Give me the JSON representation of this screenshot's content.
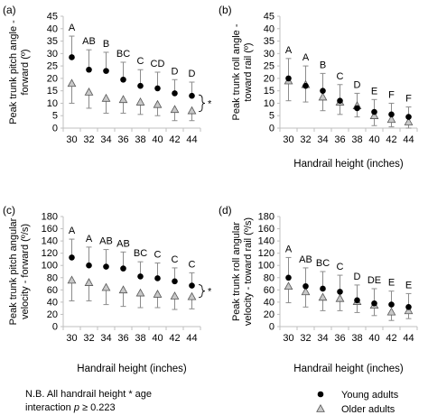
{
  "chart_data": [
    {
      "type": "scatter",
      "panel_label": "(a)",
      "ylabel_lines": [
        "Peak trunk pitch angle -",
        "forward (º)"
      ],
      "xlabel": "",
      "ylim": [
        0,
        45
      ],
      "yticks": [
        0,
        5,
        10,
        15,
        20,
        25,
        30,
        35,
        40,
        45
      ],
      "x": [
        30,
        32,
        34,
        36,
        38,
        40,
        42,
        44
      ],
      "series": [
        {
          "name": "Young adults",
          "marker": "circle",
          "values": [
            28.5,
            23.5,
            23.0,
            19.5,
            17.0,
            16.0,
            14.0,
            13.0
          ],
          "err_up": [
            8.5,
            8.0,
            7.5,
            7.0,
            6.5,
            6.5,
            5.5,
            5.5
          ]
        },
        {
          "name": "Older adults",
          "marker": "triangle",
          "values": [
            18.0,
            14.5,
            12.0,
            11.5,
            10.5,
            9.5,
            7.5,
            7.0
          ],
          "err_down": [
            8.0,
            6.5,
            6.0,
            5.5,
            5.0,
            4.5,
            4.5,
            4.0
          ]
        }
      ],
      "letters": [
        "A",
        "AB",
        "B",
        "BC",
        "C",
        "CD",
        "D",
        "D"
      ],
      "sig_mark": "*"
    },
    {
      "type": "scatter",
      "panel_label": "(b)",
      "ylabel_lines": [
        "Peak trunk roll angle -",
        "toward rail (º)"
      ],
      "xlabel": "Handrail height (inches)",
      "ylim": [
        0,
        45
      ],
      "yticks": [
        0,
        5,
        10,
        15,
        20,
        25,
        30,
        35,
        40,
        45
      ],
      "x": [
        30,
        32,
        34,
        36,
        38,
        40,
        42,
        44
      ],
      "series": [
        {
          "name": "Young adults",
          "marker": "circle",
          "values": [
            20.0,
            17.0,
            15.0,
            11.0,
            8.0,
            6.5,
            5.5,
            4.5
          ],
          "err_up": [
            8.0,
            8.0,
            7.0,
            6.5,
            6.0,
            5.0,
            4.5,
            4.0
          ]
        },
        {
          "name": "Older adults",
          "marker": "triangle",
          "values": [
            19.0,
            17.5,
            12.5,
            10.5,
            9.0,
            5.0,
            3.5,
            2.5
          ],
          "err_down": [
            8.0,
            7.0,
            5.5,
            5.0,
            4.5,
            4.0,
            3.0,
            2.5
          ]
        }
      ],
      "letters": [
        "A",
        "A",
        "B",
        "C",
        "D",
        "E",
        "F",
        "F"
      ],
      "sig_mark": ""
    },
    {
      "type": "scatter",
      "panel_label": "(c)",
      "ylabel_lines": [
        "Peak trunk pitch angular",
        "velocity - forward (º/s)"
      ],
      "xlabel": "Handrail height (inches)",
      "ylim": [
        0,
        180
      ],
      "yticks": [
        0,
        20,
        40,
        60,
        80,
        100,
        120,
        140,
        160,
        180
      ],
      "x": [
        30,
        32,
        34,
        36,
        38,
        40,
        42,
        44
      ],
      "series": [
        {
          "name": "Young adults",
          "marker": "circle",
          "values": [
            113,
            100,
            98,
            95,
            82,
            79,
            74,
            67
          ],
          "err_up": [
            30,
            30,
            28,
            27,
            24,
            25,
            22,
            21
          ]
        },
        {
          "name": "Older adults",
          "marker": "triangle",
          "values": [
            76,
            72,
            64,
            60,
            55,
            53,
            50,
            49
          ],
          "err_down": [
            34,
            30,
            28,
            27,
            24,
            22,
            22,
            20
          ]
        }
      ],
      "letters": [
        "A",
        "A",
        "AB",
        "AB",
        "BC",
        "C",
        "C",
        "C"
      ],
      "sig_mark": "*"
    },
    {
      "type": "scatter",
      "panel_label": "(d)",
      "ylabel_lines": [
        "Peak trunk roll angular",
        "velocity - toward rail (º/s)"
      ],
      "xlabel": "Handrail height (inches)",
      "ylim": [
        0,
        180
      ],
      "yticks": [
        0,
        20,
        40,
        60,
        80,
        100,
        120,
        140,
        160,
        180
      ],
      "x": [
        30,
        32,
        34,
        36,
        38,
        40,
        42,
        44
      ],
      "series": [
        {
          "name": "Young adults",
          "marker": "circle",
          "values": [
            80,
            66,
            62,
            57,
            43,
            38,
            36,
            32
          ],
          "err_up": [
            33,
            30,
            28,
            27,
            25,
            24,
            22,
            22
          ]
        },
        {
          "name": "Older adults",
          "marker": "triangle",
          "values": [
            66,
            57,
            48,
            46,
            41,
            35,
            24,
            26
          ],
          "err_down": [
            27,
            25,
            22,
            20,
            18,
            17,
            14,
            13
          ]
        }
      ],
      "letters": [
        "A",
        "AB",
        "BC",
        "C",
        "D",
        "DE",
        "E",
        "E"
      ],
      "sig_mark": ""
    }
  ],
  "legend": {
    "young_label": "Young adults",
    "older_label": "Older adults"
  },
  "footnote": {
    "line1": "N.B. All handrail height * age",
    "line2_prefix": "interaction ",
    "line2_p": "p",
    "line2_suffix": " ≥ 0.223"
  }
}
